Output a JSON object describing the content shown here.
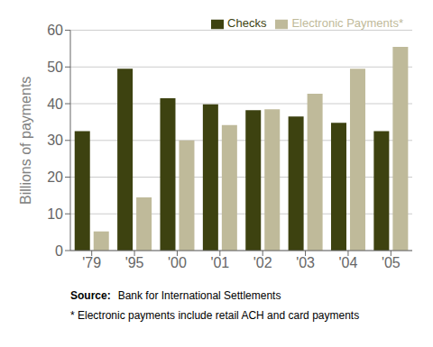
{
  "chart_data": {
    "type": "bar",
    "categories": [
      "'79",
      "'95",
      "'00",
      "'01",
      "'02",
      "'03",
      "'04",
      "'05"
    ],
    "series": [
      {
        "name": "Checks",
        "color": "#3d4210",
        "values": [
          32.5,
          49.5,
          41.5,
          39.8,
          38.2,
          36.5,
          34.8,
          32.5
        ]
      },
      {
        "name": "Electronic Payments*",
        "color": "#bfba9a",
        "values": [
          5.2,
          14.5,
          30.0,
          34.2,
          38.5,
          42.7,
          49.5,
          55.5
        ]
      }
    ],
    "ylabel": "Billions of payments",
    "ylim": [
      0,
      60
    ],
    "yticks": [
      0,
      10,
      20,
      30,
      40,
      50,
      60
    ],
    "grid": true,
    "legend": "upper right",
    "annotations": [
      "Source:",
      "Bank for International Settlements",
      "* Electronic payments include retail ACH and card payments"
    ]
  }
}
